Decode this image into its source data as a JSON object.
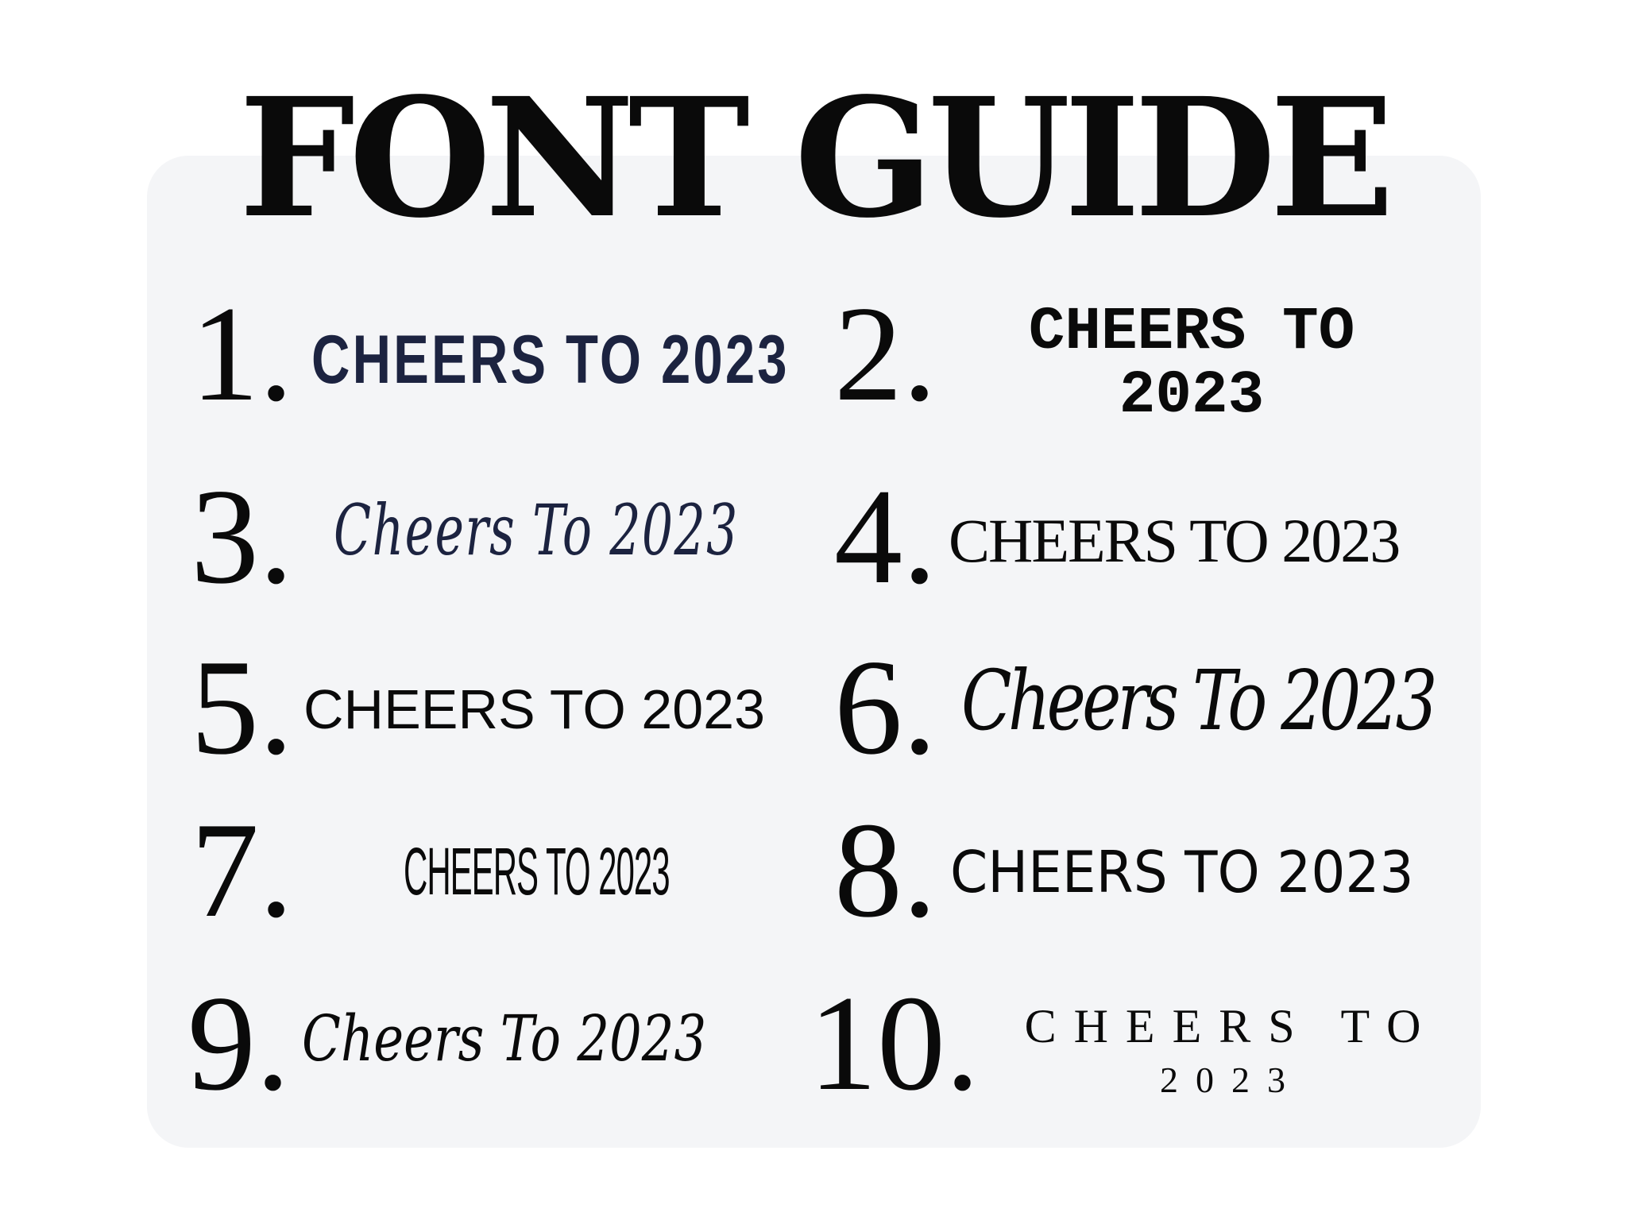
{
  "title": "FONT GUIDE",
  "panel_color": "#f4f5f7",
  "items": [
    {
      "number": "1.",
      "sample": "CHEERS TO 2023"
    },
    {
      "number": "2.",
      "sample": "CHEERS TO",
      "sample_line2": "2023"
    },
    {
      "number": "3.",
      "sample": "Cheers To 2023"
    },
    {
      "number": "4.",
      "sample": "CHEERS TO 2023"
    },
    {
      "number": "5.",
      "sample": "CHEERS TO 2023"
    },
    {
      "number": "6.",
      "sample": "Cheers To 2023"
    },
    {
      "number": "7.",
      "sample": "CHEERS TO 2023"
    },
    {
      "number": "8.",
      "sample": "CHEERS TO 2023"
    },
    {
      "number": "9.",
      "sample": "Cheers To 2023"
    },
    {
      "number": "10.",
      "sample": "CHEERS TO",
      "sample_line2": "2023"
    }
  ]
}
